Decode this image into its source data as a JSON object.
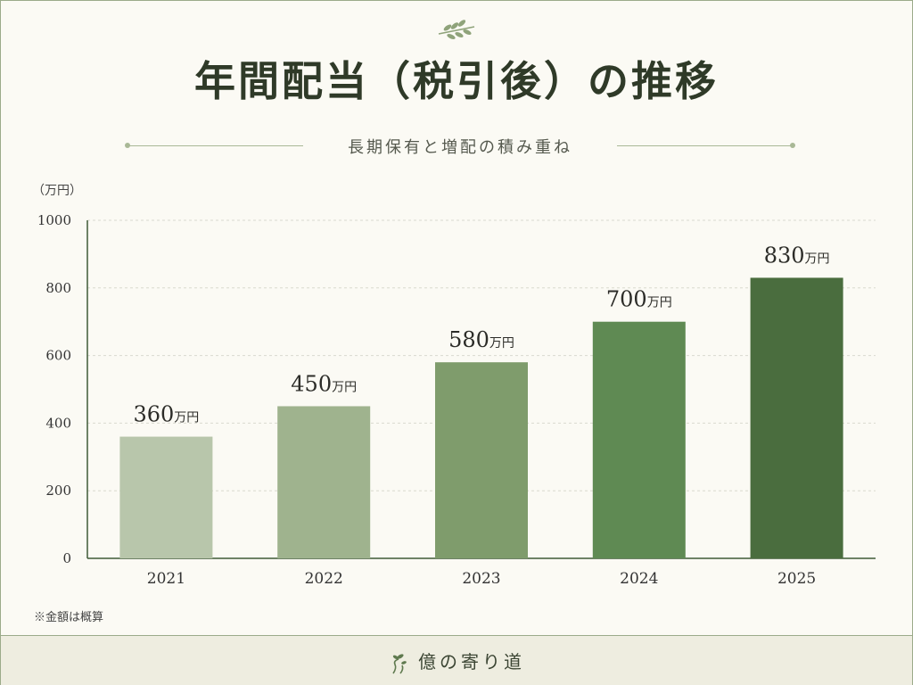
{
  "header": {
    "title": "年間配当（税引後）の推移",
    "subtitle": "長期保有と増配の積み重ね",
    "ornament_icon": "olive-branch-icon"
  },
  "chart_data": {
    "type": "bar",
    "title": "年間配当（税引後）の推移",
    "subtitle": "長期保有と増配の積み重ね",
    "ylabel": "（万円）",
    "xlabel": "",
    "categories": [
      "2021",
      "2022",
      "2023",
      "2024",
      "2025"
    ],
    "values": [
      360,
      450,
      580,
      700,
      830
    ],
    "value_labels": [
      "360",
      "450",
      "580",
      "700",
      "830"
    ],
    "value_unit": "万円",
    "ylim": [
      0,
      1000
    ],
    "yticks": [
      "0",
      "200",
      "400",
      "600",
      "800",
      "1000"
    ],
    "grid": true,
    "bar_colors": [
      "#b8c6ab",
      "#9fb38e",
      "#7f9c6c",
      "#5f8a53",
      "#4a6d3e"
    ]
  },
  "footnote": "※金額は概算",
  "footer": {
    "brand": "億の寄り道",
    "icon": "sprout-path-icon"
  },
  "colors": {
    "background": "#fbfaf4",
    "axis": "#3f5a36",
    "grid": "#d9d9cf",
    "footer_bg": "#eeede0",
    "accent": "#4a6d3e"
  }
}
